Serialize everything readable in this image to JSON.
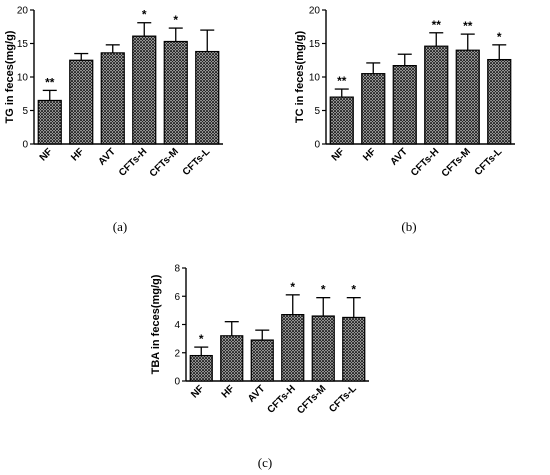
{
  "chart_data": [
    {
      "type": "bar",
      "panel_label": "(a)",
      "ylabel": "TG in feces(mg/g)",
      "ylim": [
        0,
        20
      ],
      "yticks": [
        "0",
        "5",
        "10",
        "15",
        "20"
      ],
      "categories": [
        "NF",
        "HF",
        "AVT",
        "CFTs-H",
        "CFTs-M",
        "CFTs-L"
      ],
      "values": [
        6.5,
        12.5,
        13.6,
        16.1,
        15.3,
        13.8
      ],
      "errors": [
        1.5,
        1.0,
        1.2,
        2.0,
        2.0,
        3.2
      ],
      "significance": [
        "**",
        "",
        "",
        "*",
        "*",
        ""
      ],
      "grid": false
    },
    {
      "type": "bar",
      "panel_label": "(b)",
      "ylabel": "TC in feces(mg/g)",
      "ylim": [
        0,
        20
      ],
      "yticks": [
        "0",
        "5",
        "10",
        "15",
        "20"
      ],
      "categories": [
        "NF",
        "HF",
        "AVT",
        "CFTs-H",
        "CFTs-M",
        "CFTs-L"
      ],
      "values": [
        7.0,
        10.5,
        11.7,
        14.6,
        14.0,
        12.6
      ],
      "errors": [
        1.2,
        1.6,
        1.7,
        2.0,
        2.4,
        2.2
      ],
      "significance": [
        "**",
        "",
        "",
        "**",
        "**",
        "*"
      ],
      "grid": false
    },
    {
      "type": "bar",
      "panel_label": "(c)",
      "ylabel": "TBA in feces(mg/g)",
      "ylim": [
        0,
        8
      ],
      "yticks": [
        "0",
        "2",
        "4",
        "6",
        "8"
      ],
      "categories": [
        "NF",
        "HF",
        "AVT",
        "CFTs-H",
        "CFTs-M",
        "CFTs-L"
      ],
      "values": [
        1.8,
        3.2,
        2.9,
        4.7,
        4.6,
        4.5
      ],
      "errors": [
        0.6,
        1.0,
        0.7,
        1.4,
        1.3,
        1.4
      ],
      "significance": [
        "*",
        "",
        "",
        "*",
        "*",
        "*"
      ],
      "grid": false
    }
  ]
}
